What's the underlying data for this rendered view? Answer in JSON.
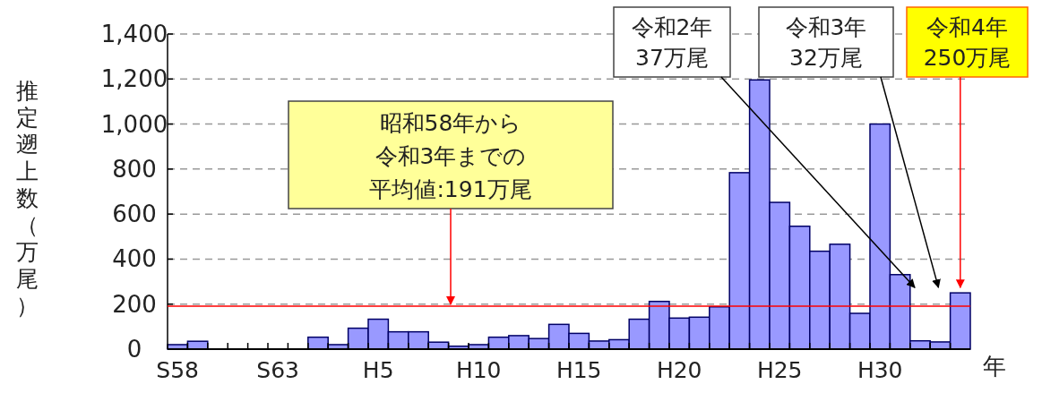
{
  "chart_data": {
    "type": "bar",
    "ylabel": "推定遡上数（万尾）",
    "xlabel": "年",
    "categories": [
      "S58",
      null,
      null,
      null,
      null,
      "S63",
      null,
      null,
      null,
      null,
      "H5",
      null,
      null,
      null,
      null,
      "H10",
      null,
      null,
      null,
      null,
      "H15",
      null,
      null,
      null,
      null,
      "H20",
      null,
      null,
      null,
      null,
      "H25",
      null,
      null,
      null,
      null,
      "H30",
      null,
      null,
      null,
      null
    ],
    "values": [
      20,
      35,
      0,
      0,
      0,
      0,
      0,
      53,
      20,
      93,
      133,
      77,
      77,
      31,
      13,
      20,
      53,
      60,
      47,
      110,
      70,
      36,
      42,
      133,
      212,
      138,
      142,
      188,
      784,
      1196,
      652,
      546,
      435,
      466,
      159,
      1000,
      331,
      37,
      32,
      250
    ],
    "color": "#9999ff",
    "ylim": [
      0,
      1400
    ],
    "yticks": [
      0,
      200,
      400,
      600,
      800,
      {
        "value": 1000,
        "label": "1,000"
      },
      {
        "value": 1200,
        "label": "1,200"
      },
      {
        "value": 1400,
        "label": "1,400"
      }
    ],
    "grid": "y",
    "ref_lines": [
      {
        "axis": "y",
        "value": 191,
        "label": "昭和58年から令和3年までの平均値:191万尾",
        "color": "#ff0000"
      }
    ],
    "annotations": [
      "令和2年37万尾",
      "令和3年32万尾",
      "令和4年250万尾"
    ]
  }
}
